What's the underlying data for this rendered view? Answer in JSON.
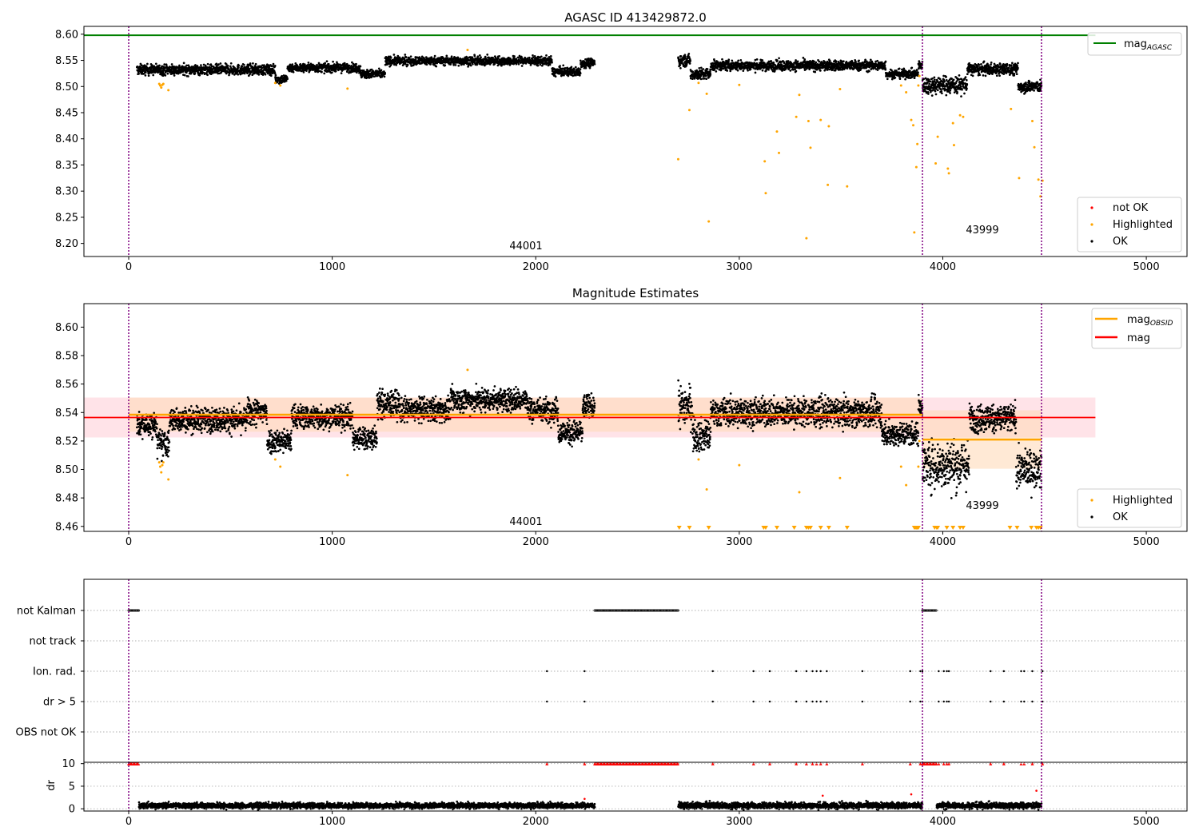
{
  "figure": {
    "panel1_title": "AGASC ID 413429872.0",
    "panel2_title": "Magnitude Estimates"
  },
  "colors": {
    "agasc_line": "#008000",
    "obsid_mag": "#ffa500",
    "mean_mag": "#ff0000",
    "ok_points": "#000000",
    "highlighted": "#ffa500",
    "not_ok": "#ff0000",
    "obs_boundary": "#800080",
    "band_mean": "#ffc0cb",
    "band_obsid": "#ffdab9",
    "flag_grid": "#b0b0b0"
  },
  "chart_data": [
    {
      "type": "scatter",
      "title": "AGASC ID 413429872.0",
      "xlim": [
        -220,
        5200
      ],
      "ylim": [
        8.175,
        8.615
      ],
      "xticks": [
        0,
        1000,
        2000,
        3000,
        4000,
        5000
      ],
      "yticks": [
        8.2,
        8.25,
        8.3,
        8.35,
        8.4,
        8.45,
        8.5,
        8.55,
        8.6
      ],
      "reference_line": {
        "label": "mag_AGASC",
        "y": 8.598,
        "x_range": [
          -220,
          4750
        ]
      },
      "observation_boundaries": [
        0,
        3900,
        4485
      ],
      "observation_labels": [
        {
          "text": "44001",
          "x": 1945,
          "y": 8.19
        },
        {
          "text": "43999",
          "x": 4185,
          "y": 8.22
        }
      ],
      "legend": {
        "upper_right": [
          "mag_AGASC"
        ],
        "lower_right": [
          "not OK",
          "Highlighted",
          "OK"
        ]
      },
      "series": [
        {
          "name": "OK",
          "segments": [
            {
              "x_range": [
                40,
                720
              ],
              "baseline": 8.532,
              "noise": 0.007
            },
            {
              "x_range": [
                720,
                780
              ],
              "baseline": 8.514,
              "noise": 0.006
            },
            {
              "x_range": [
                780,
                1140
              ],
              "baseline": 8.536,
              "noise": 0.006
            },
            {
              "x_range": [
                1140,
                1260
              ],
              "baseline": 8.524,
              "noise": 0.006
            },
            {
              "x_range": [
                1260,
                2080
              ],
              "baseline": 8.549,
              "noise": 0.006
            },
            {
              "x_range": [
                2080,
                2220
              ],
              "baseline": 8.528,
              "noise": 0.006
            },
            {
              "x_range": [
                2220,
                2290
              ],
              "baseline": 8.545,
              "noise": 0.006
            },
            {
              "x_range": [
                2700,
                2760
              ],
              "baseline": 8.55,
              "noise": 0.008
            },
            {
              "x_range": [
                2760,
                2860
              ],
              "baseline": 8.524,
              "noise": 0.008
            },
            {
              "x_range": [
                2860,
                3720
              ],
              "baseline": 8.54,
              "noise": 0.007
            },
            {
              "x_range": [
                3720,
                3880
              ],
              "baseline": 8.524,
              "noise": 0.006
            },
            {
              "x_range": [
                3880,
                3900
              ],
              "baseline": 8.54,
              "noise": 0.006
            },
            {
              "x_range": [
                3900,
                4120
              ],
              "baseline": 8.503,
              "noise": 0.012
            },
            {
              "x_range": [
                4120,
                4370
              ],
              "baseline": 8.533,
              "noise": 0.008
            },
            {
              "x_range": [
                4370,
                4485
              ],
              "baseline": 8.5,
              "noise": 0.008
            }
          ]
        },
        {
          "name": "Highlighted",
          "x": [
            150,
            155,
            160,
            165,
            170,
            195,
            720,
            745,
            1075,
            1665,
            2700,
            2755,
            2800,
            2840,
            2850,
            3000,
            3125,
            3130,
            3185,
            3195,
            3280,
            3295,
            3330,
            3340,
            3350,
            3400,
            3435,
            3440,
            3495,
            3530,
            3795,
            3820,
            3845,
            3855,
            3860,
            3870,
            3875,
            3880,
            3885,
            3965,
            3975,
            4025,
            4030,
            4050,
            4055,
            4085,
            4100,
            4335,
            4375,
            4440,
            4450,
            4470,
            4480,
            4490
          ],
          "y": [
            8.505,
            8.502,
            8.498,
            8.503,
            8.505,
            8.493,
            8.507,
            8.502,
            8.496,
            8.57,
            8.361,
            8.455,
            8.507,
            8.486,
            8.242,
            8.503,
            8.357,
            8.296,
            8.414,
            8.373,
            8.442,
            8.484,
            8.21,
            8.434,
            8.383,
            8.436,
            8.312,
            8.424,
            8.495,
            8.309,
            8.502,
            8.489,
            8.436,
            8.426,
            8.221,
            8.346,
            8.39,
            8.502,
            8.52,
            8.353,
            8.404,
            8.343,
            8.334,
            8.43,
            8.388,
            8.445,
            8.442,
            8.457,
            8.325,
            8.434,
            8.384,
            8.322,
            8.29,
            8.32
          ]
        }
      ]
    },
    {
      "type": "scatter",
      "title": "Magnitude Estimates",
      "xlim": [
        -220,
        5200
      ],
      "ylim": [
        8.4565,
        8.6165
      ],
      "xticks": [
        0,
        1000,
        2000,
        3000,
        4000,
        5000
      ],
      "yticks": [
        8.46,
        8.48,
        8.5,
        8.52,
        8.54,
        8.56,
        8.58,
        8.6
      ],
      "mean_mag": {
        "label": "mag",
        "y": 8.5365,
        "band": [
          8.5225,
          8.5505
        ],
        "x_range": [
          -220,
          4750
        ]
      },
      "obsid_mag": [
        {
          "obsid": "44001",
          "y": 8.5385,
          "band": [
            8.5265,
            8.5505
          ],
          "x_range": [
            0,
            3900
          ]
        },
        {
          "obsid": "43999",
          "y": 8.521,
          "band": [
            8.5005,
            8.5415
          ],
          "x_range": [
            3900,
            4485
          ]
        }
      ],
      "observation_boundaries": [
        0,
        3900,
        4485
      ],
      "observation_labels": [
        {
          "text": "44001",
          "x": 1945,
          "y": 8.462
        },
        {
          "text": "43999",
          "x": 4185,
          "y": 8.475
        }
      ],
      "legend": {
        "upper_right": [
          "mag_OBSID",
          "mag"
        ],
        "lower_right": [
          "Highlighted",
          "OK"
        ]
      },
      "clipped_low_markers_x": [
        2705,
        2755,
        2850,
        3120,
        3130,
        3185,
        3270,
        3330,
        3340,
        3350,
        3400,
        3440,
        3530,
        3860,
        3865,
        3870,
        3875,
        3880,
        3960,
        3970,
        3975,
        4020,
        4050,
        4085,
        4100,
        4330,
        4365,
        4435,
        4460,
        4470,
        4480
      ],
      "series": [
        {
          "name": "OK",
          "segments": [
            {
              "x_range": [
                40,
                140
              ],
              "baseline": 8.531,
              "noise": 0.006
            },
            {
              "x_range": [
                140,
                200
              ],
              "baseline": 8.518,
              "noise": 0.007
            },
            {
              "x_range": [
                200,
                580
              ],
              "baseline": 8.535,
              "noise": 0.006
            },
            {
              "x_range": [
                580,
                680
              ],
              "baseline": 8.54,
              "noise": 0.007
            },
            {
              "x_range": [
                680,
                800
              ],
              "baseline": 8.52,
              "noise": 0.006
            },
            {
              "x_range": [
                800,
                1100
              ],
              "baseline": 8.537,
              "noise": 0.006
            },
            {
              "x_range": [
                1100,
                1220
              ],
              "baseline": 8.522,
              "noise": 0.006
            },
            {
              "x_range": [
                1220,
                1330
              ],
              "baseline": 8.546,
              "noise": 0.007
            },
            {
              "x_range": [
                1330,
                1580
              ],
              "baseline": 8.542,
              "noise": 0.006
            },
            {
              "x_range": [
                1580,
                1960
              ],
              "baseline": 8.549,
              "noise": 0.006
            },
            {
              "x_range": [
                1960,
                2110
              ],
              "baseline": 8.542,
              "noise": 0.006
            },
            {
              "x_range": [
                2110,
                2230
              ],
              "baseline": 8.526,
              "noise": 0.006
            },
            {
              "x_range": [
                2230,
                2290
              ],
              "baseline": 8.544,
              "noise": 0.006
            },
            {
              "x_range": [
                2700,
                2770
              ],
              "baseline": 8.545,
              "noise": 0.01
            },
            {
              "x_range": [
                2770,
                2860
              ],
              "baseline": 8.524,
              "noise": 0.008
            },
            {
              "x_range": [
                2860,
                3700
              ],
              "baseline": 8.54,
              "noise": 0.007
            },
            {
              "x_range": [
                3700,
                3880
              ],
              "baseline": 8.525,
              "noise": 0.006
            },
            {
              "x_range": [
                3880,
                3900
              ],
              "baseline": 8.545,
              "noise": 0.005
            },
            {
              "x_range": [
                3900,
                4130
              ],
              "baseline": 8.503,
              "noise": 0.012
            },
            {
              "x_range": [
                4130,
                4360
              ],
              "baseline": 8.536,
              "noise": 0.007
            },
            {
              "x_range": [
                4360,
                4485
              ],
              "baseline": 8.5,
              "noise": 0.009
            }
          ]
        },
        {
          "name": "Highlighted",
          "x": [
            150,
            155,
            160,
            165,
            170,
            195,
            720,
            745,
            1075,
            1665,
            2800,
            2840,
            3000,
            3295,
            3495,
            3795,
            3820,
            3880,
            3885
          ],
          "y": [
            8.505,
            8.502,
            8.498,
            8.503,
            8.505,
            8.493,
            8.507,
            8.502,
            8.496,
            8.57,
            8.507,
            8.486,
            8.503,
            8.484,
            8.494,
            8.502,
            8.489,
            8.502,
            8.52
          ]
        }
      ]
    },
    {
      "type": "scatter",
      "title": "",
      "xlim": [
        -220,
        5200
      ],
      "categories": [
        "not Kalman",
        "not track",
        "Ion. rad.",
        "dr > 5",
        "OBS not OK"
      ],
      "observation_boundaries": [
        0,
        3900,
        4485
      ],
      "series": [
        {
          "name": "not Kalman",
          "x_ranges": [
            [
              0,
              50
            ],
            [
              2290,
              2700
            ],
            [
              3900,
              3970
            ]
          ]
        },
        {
          "name": "not track",
          "x": []
        },
        {
          "name": "Ion. rad.",
          "x": [
            2055,
            2240,
            2870,
            3070,
            3150,
            3280,
            3330,
            3360,
            3380,
            3400,
            3430,
            3605,
            3840,
            3890,
            3900,
            3980,
            4005,
            4020,
            4030,
            4235,
            4300,
            4385,
            4400,
            4440,
            4490
          ]
        },
        {
          "name": "dr > 5",
          "x": [
            2055,
            2240,
            2870,
            3070,
            3150,
            3280,
            3330,
            3360,
            3380,
            3400,
            3430,
            3605,
            3840,
            3890,
            3900,
            3980,
            4005,
            4020,
            4030,
            4235,
            4300,
            4385,
            4400,
            4440,
            4490
          ]
        },
        {
          "name": "OBS not OK",
          "x": []
        }
      ]
    },
    {
      "type": "scatter",
      "title": "",
      "ylabel": "dr",
      "xlim": [
        -220,
        5200
      ],
      "ylim": [
        -0.5,
        10.3
      ],
      "xticks": [
        0,
        1000,
        2000,
        3000,
        4000,
        5000
      ],
      "yticks": [
        0,
        5,
        10
      ],
      "observation_boundaries": [
        0,
        3900,
        4485
      ],
      "series": [
        {
          "name": "dr",
          "segments": [
            {
              "x_range": [
                50,
                2290
              ],
              "baseline": 0.7,
              "noise": 0.45
            },
            {
              "x_range": [
                2700,
                3900
              ],
              "baseline": 0.7,
              "noise": 0.5
            },
            {
              "x_range": [
                3970,
                4485
              ],
              "baseline": 0.7,
              "noise": 0.5
            }
          ]
        },
        {
          "name": "dr clipped (≥10)",
          "x_ranges": [
            [
              0,
              50
            ],
            [
              2290,
              2700
            ],
            [
              3900,
              3970
            ]
          ],
          "x": [
            2055,
            2240,
            2870,
            3070,
            3150,
            3280,
            3330,
            3360,
            3380,
            3400,
            3430,
            3605,
            3840,
            3890,
            3980,
            4005,
            4020,
            4030,
            4235,
            4300,
            4385,
            4400,
            4440,
            4490
          ]
        },
        {
          "name": "dr large",
          "x": [
            2240,
            3410,
            3845,
            4460
          ],
          "y": [
            2.2,
            2.9,
            3.2,
            4.0
          ]
        }
      ]
    }
  ]
}
